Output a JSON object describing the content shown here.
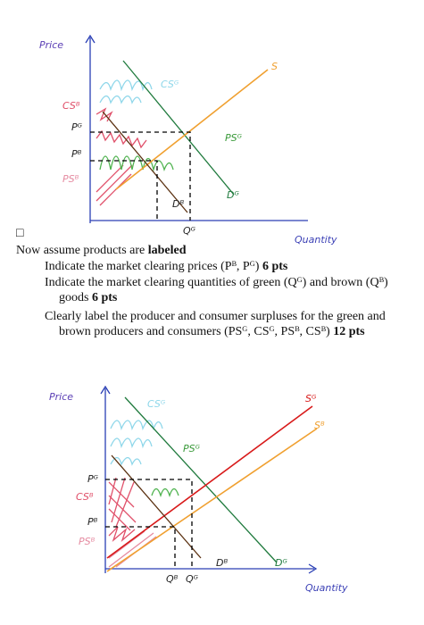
{
  "diagram_1": {
    "price": "Price",
    "cs_b": "CSᴮ",
    "p_g": "Pᴳ",
    "p_b": "Pᴮ",
    "ps_b": "PSᴮ",
    "cs_g": "CSᴳ",
    "s": "S",
    "ps_g": "PSᴳ",
    "d_b": "Dᴮ",
    "d_g": "Dᴳ",
    "q_g": "Qᴳ",
    "quantity": "Quantity"
  },
  "checkbox": "□",
  "text": {
    "intro": "Now assume products are",
    "intro_bold": "labeled",
    "items": [
      {
        "text": "Indicate the market clearing prices (Pᴮ, Pᴳ)",
        "points": "6 pts"
      },
      {
        "text": "Indicate the market clearing quantities of green (Qᴳ) and brown (Qᴮ) goods",
        "points": "6 pts"
      },
      {
        "text": "Clearly label the producer and consumer surpluses for the green and brown producers and consumers (PSᴳ, CSᴳ, PSᴮ, CSᴮ)",
        "points": "12 pts"
      }
    ]
  },
  "diagram_2": {
    "price": "Price",
    "cs_g": "CSᴳ",
    "s_g": "Sᴳ",
    "s_b": "Sᴮ",
    "ps_g": "PSᴳ",
    "p_g": "Pᴳ",
    "cs_b": "CSᴮ",
    "p_b": "Pᴮ",
    "ps_b": "PSᴮ",
    "q_b": "Qᴮ",
    "q_g": "Qᴳ",
    "d_b": "Dᴮ",
    "d_g": "Dᴳ",
    "quantity": "Quantity"
  }
}
